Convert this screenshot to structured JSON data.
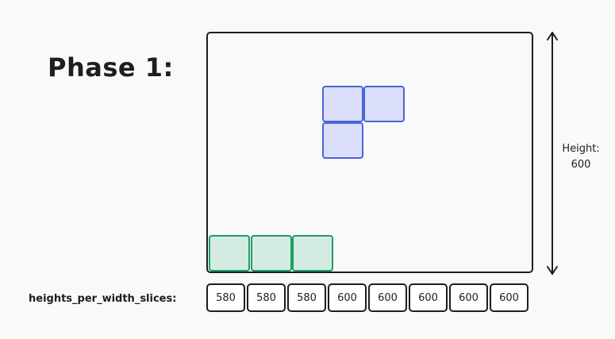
{
  "title": "Phase 1:",
  "height_label": {
    "line1": "Height:",
    "line2": "600"
  },
  "slices_label": "heights_per_width_slices:",
  "slices": [
    {
      "value": "580"
    },
    {
      "value": "580"
    },
    {
      "value": "580"
    },
    {
      "value": "600"
    },
    {
      "value": "600"
    },
    {
      "value": "600"
    },
    {
      "value": "600"
    },
    {
      "value": "600"
    }
  ],
  "colors": {
    "falling_fill": "#dcdffb",
    "falling_stroke": "#4a63d8",
    "settled_fill": "#d3ebe3",
    "settled_stroke": "#1f9d63",
    "outline": "#1e1e1e"
  }
}
